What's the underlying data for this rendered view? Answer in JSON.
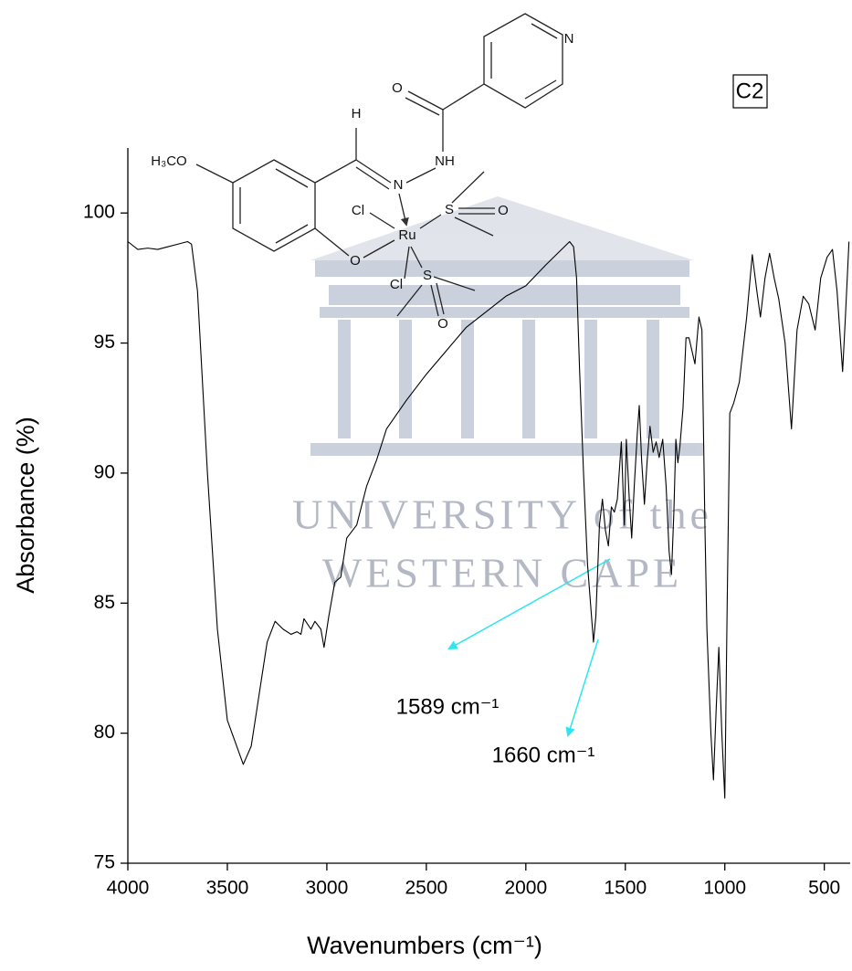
{
  "chart_data": {
    "type": "line",
    "xlabel": "Wavenumbers (cm⁻¹)",
    "ylabel": "Absorbance (%)",
    "label_box": "C2",
    "annotations": [
      "1589 cm⁻¹",
      "1660 cm⁻¹"
    ],
    "watermark": [
      "UNIVERSITY of the",
      "WESTERN CAPE"
    ],
    "xlim": [
      4000,
      370
    ],
    "xticks": [
      4000,
      3500,
      3000,
      2500,
      2000,
      1500,
      1000,
      500
    ],
    "ylim": [
      75,
      102.5
    ],
    "yticks": [
      75,
      80,
      85,
      90,
      95,
      100
    ],
    "color": "#000000",
    "x": [
      4000,
      3950,
      3900,
      3850,
      3800,
      3750,
      3700,
      3680,
      3650,
      3600,
      3550,
      3500,
      3420,
      3380,
      3350,
      3300,
      3260,
      3220,
      3180,
      3150,
      3130,
      3115,
      3080,
      3060,
      3030,
      3014,
      2990,
      2960,
      2930,
      2900,
      2850,
      2800,
      2750,
      2700,
      2600,
      2500,
      2400,
      2300,
      2200,
      2100,
      2000,
      1900,
      1780,
      1760,
      1745,
      1730,
      1710,
      1690,
      1660,
      1648,
      1630,
      1615,
      1600,
      1585,
      1570,
      1555,
      1540,
      1520,
      1505,
      1495,
      1480,
      1468,
      1455,
      1440,
      1430,
      1418,
      1404,
      1390,
      1376,
      1360,
      1345,
      1330,
      1312,
      1295,
      1280,
      1268,
      1256,
      1246,
      1236,
      1226,
      1210,
      1195,
      1180,
      1150,
      1130,
      1115,
      1100,
      1090,
      1070,
      1057,
      1043,
      1030,
      1015,
      1000,
      988,
      975,
      955,
      927,
      890,
      862,
      839,
      821,
      798,
      775,
      752,
      729,
      697,
      665,
      637,
      606,
      578,
      546,
      518,
      486,
      459,
      436,
      408,
      394,
      376
    ],
    "values": [
      98.9,
      98.6,
      98.65,
      98.6,
      98.7,
      98.8,
      98.9,
      98.8,
      97,
      90,
      84,
      80.5,
      78.8,
      79.5,
      81,
      83.5,
      84.3,
      84,
      83.8,
      83.9,
      83.8,
      84.4,
      84,
      84.3,
      84,
      83.3,
      84.5,
      85.8,
      86,
      87.5,
      88,
      89.5,
      90.5,
      91.7,
      92.8,
      93.8,
      94.7,
      95.6,
      96.2,
      96.8,
      97.2,
      98,
      98.9,
      98.7,
      97.5,
      94,
      90,
      86.5,
      83.5,
      84.5,
      88,
      89,
      87.8,
      87.2,
      88.7,
      88.5,
      89,
      91.2,
      88,
      91.3,
      89,
      87.5,
      89.5,
      91.5,
      92.6,
      90.5,
      88.8,
      90.5,
      91.8,
      90.8,
      91.2,
      90.6,
      91.3,
      89.5,
      87,
      86.1,
      88.5,
      91.3,
      90.4,
      91,
      92.5,
      95.2,
      95.2,
      94.2,
      96,
      95.5,
      88,
      84,
      80,
      78.2,
      81,
      83.3,
      80,
      77.5,
      85,
      92.3,
      92.7,
      93.5,
      96,
      98.4,
      97,
      96,
      97.5,
      98.45,
      97.5,
      96.7,
      95,
      91.7,
      95.5,
      96.8,
      96.5,
      95.5,
      97.5,
      98.3,
      98.6,
      97,
      93.9,
      96,
      98.9
    ]
  },
  "structure": {
    "labels": [
      "N",
      "O",
      "H",
      "NH",
      "H₃CO",
      "N",
      "Cl",
      "S",
      "O",
      "Ru",
      "O",
      "Cl",
      "S",
      "O"
    ]
  }
}
